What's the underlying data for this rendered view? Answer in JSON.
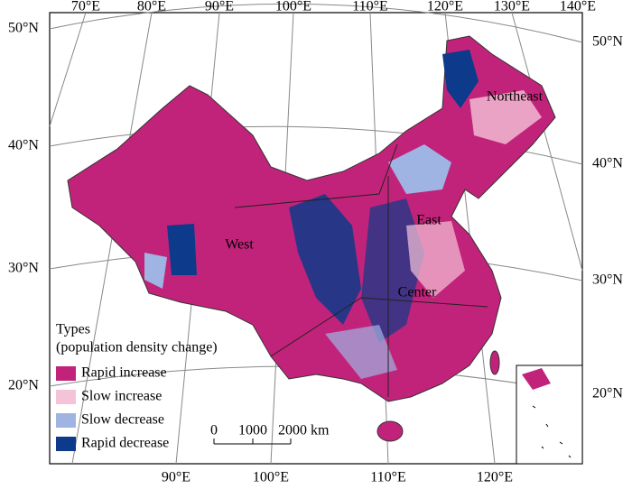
{
  "top_labels": [
    "70°E",
    "80°E",
    "90°E",
    "100°E",
    "110°E",
    "120°E",
    "130°E",
    "140°E"
  ],
  "bottom_labels": [
    "90°E",
    "100°E",
    "110°E",
    "120°E"
  ],
  "left_labels": [
    "50°N",
    "40°N",
    "30°N",
    "20°N"
  ],
  "right_labels": [
    "50°N",
    "40°N",
    "30°N",
    "20°N"
  ],
  "regions": [
    "Northeast",
    "East",
    "West",
    "Center"
  ],
  "legend": {
    "title": [
      "Types",
      "(population density change)"
    ],
    "items": [
      {
        "name": "Rapid increase",
        "color": "#c2237a"
      },
      {
        "name": "Slow increase",
        "color": "#f5c3d8"
      },
      {
        "name": "Slow decrease",
        "color": "#9fb4e3"
      },
      {
        "name": "Rapid decrease",
        "color": "#0d3a8a"
      }
    ]
  },
  "scale_bar": {
    "labels": [
      "0",
      "1000",
      "2000 km"
    ]
  }
}
